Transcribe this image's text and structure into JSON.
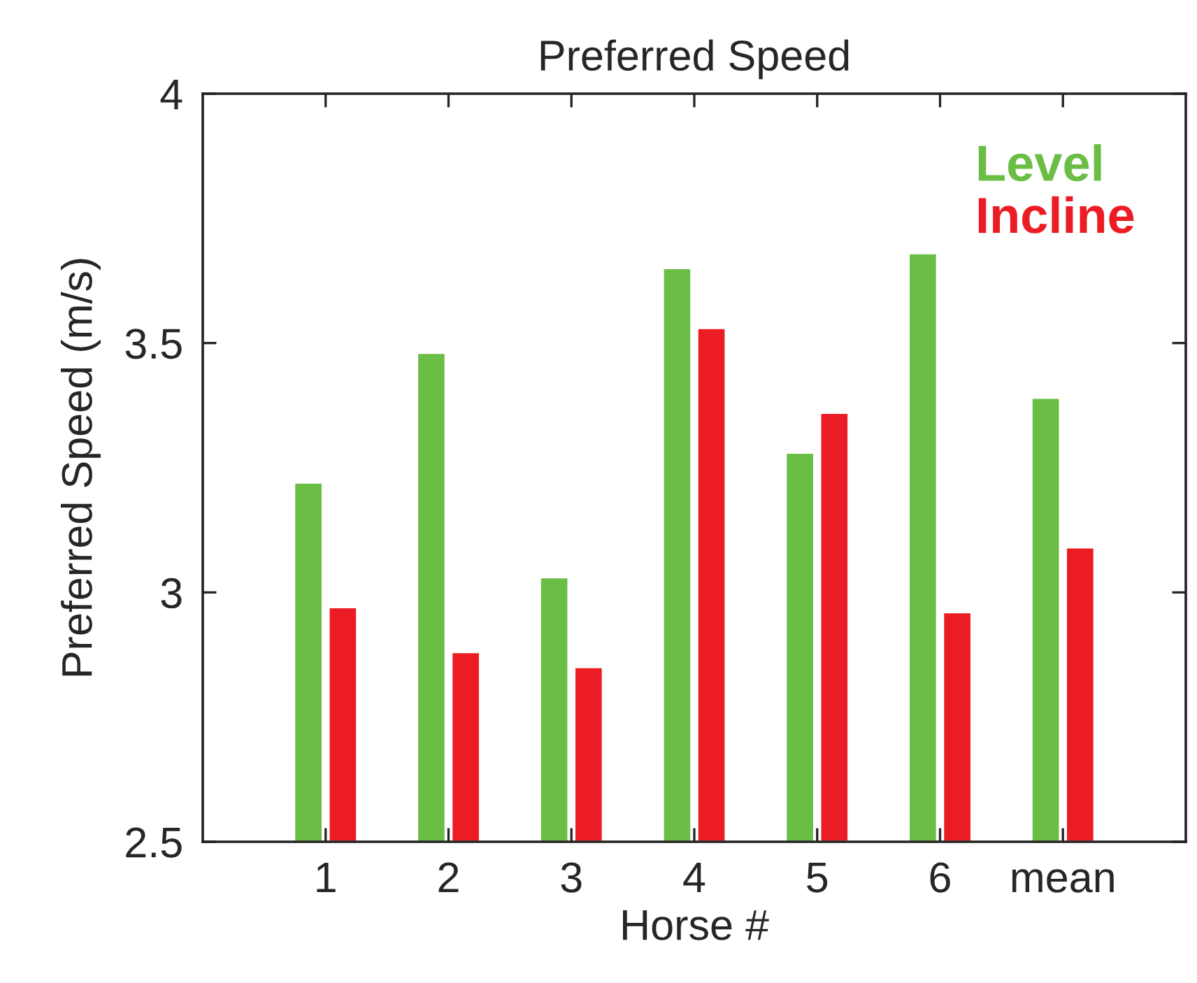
{
  "chart_data": {
    "type": "bar",
    "title": "Preferred Speed",
    "xlabel": "Horse #",
    "ylabel": "Preferred Speed (m/s)",
    "categories": [
      "1",
      "2",
      "3",
      "4",
      "5",
      "6",
      "mean"
    ],
    "series": [
      {
        "name": "Level",
        "color": "#6abd45",
        "values": [
          3.22,
          3.48,
          3.03,
          3.65,
          3.28,
          3.68,
          3.39
        ]
      },
      {
        "name": "Incline",
        "color": "#ec1c24",
        "values": [
          2.97,
          2.88,
          2.85,
          3.53,
          3.36,
          2.96,
          3.09
        ]
      }
    ],
    "ylim": [
      2.5,
      4
    ],
    "yticks": [
      2.5,
      3,
      3.5,
      4
    ],
    "grid": false,
    "legend": "top right"
  }
}
